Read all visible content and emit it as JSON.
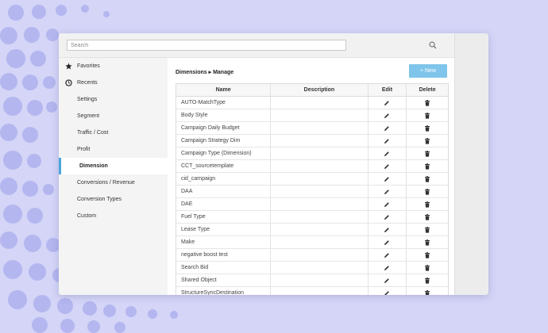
{
  "search": {
    "placeholder": "Search"
  },
  "sidebar": {
    "items": [
      {
        "label": "Favorites",
        "icon": "star-icon"
      },
      {
        "label": "Recents",
        "icon": "clock-icon"
      },
      {
        "label": "Settings"
      },
      {
        "label": "Segment"
      },
      {
        "label": "Traffic / Cost"
      },
      {
        "label": "Profit"
      },
      {
        "label": "Dimension",
        "active": true
      },
      {
        "label": "Conversions / Revenue"
      },
      {
        "label": "Conversion Types"
      },
      {
        "label": "Custom"
      }
    ]
  },
  "main": {
    "breadcrumb": "Dimensions ▸ Manage",
    "new_button_label": "+ New",
    "table": {
      "headers": {
        "name": "Name",
        "description": "Description",
        "edit": "Edit",
        "delete": "Delete"
      },
      "rows": [
        {
          "name": "AUTO-MatchType",
          "description": ""
        },
        {
          "name": "Body Style",
          "description": ""
        },
        {
          "name": "Campaign Daily Budget",
          "description": ""
        },
        {
          "name": "Campaign Strategy Dim",
          "description": ""
        },
        {
          "name": "Campaign Type (Dimension)",
          "description": ""
        },
        {
          "name": "CCT_sourcetemplate",
          "description": ""
        },
        {
          "name": "cid_campaign",
          "description": ""
        },
        {
          "name": "DAA",
          "description": ""
        },
        {
          "name": "DAE",
          "description": ""
        },
        {
          "name": "Fuel Type",
          "description": ""
        },
        {
          "name": "Lease Type",
          "description": ""
        },
        {
          "name": "Make",
          "description": ""
        },
        {
          "name": "negative boost test",
          "description": ""
        },
        {
          "name": "Search Bid",
          "description": ""
        },
        {
          "name": "Shared Object",
          "description": ""
        },
        {
          "name": "StructureSyncDestination",
          "description": ""
        }
      ]
    }
  },
  "colors": {
    "background": "#d4d5f7",
    "dots": "#b4b6ef",
    "accent": "#4aa6dc",
    "new_button": "#7fc4ea"
  }
}
